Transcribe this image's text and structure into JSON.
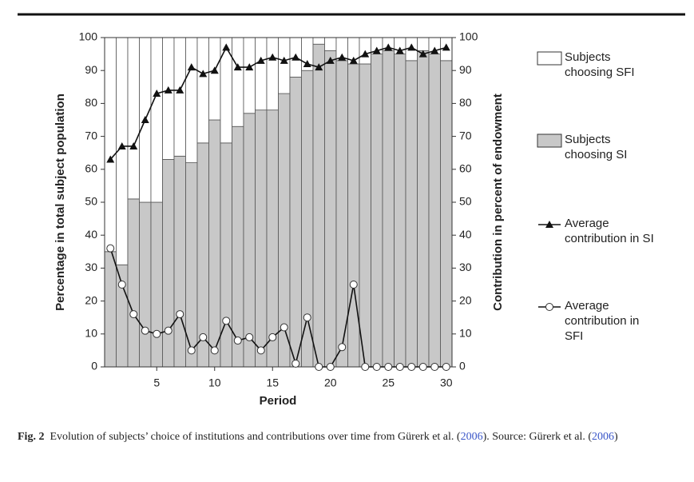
{
  "chart_data": {
    "type": "bar",
    "x_label": "Period",
    "y_label": "Percentage in total subject population",
    "y2_label": "Contribution in percent of endowment",
    "x": [
      1,
      2,
      3,
      4,
      5,
      6,
      7,
      8,
      9,
      10,
      11,
      12,
      13,
      14,
      15,
      16,
      17,
      18,
      19,
      20,
      21,
      22,
      23,
      24,
      25,
      26,
      27,
      28,
      29,
      30
    ],
    "xlim": [
      0.5,
      30.5
    ],
    "xticks": [
      5,
      10,
      15,
      20,
      25,
      30
    ],
    "ylim": [
      0,
      100
    ],
    "yticks": [
      0,
      10,
      20,
      30,
      40,
      50,
      60,
      70,
      80,
      90,
      100
    ],
    "y2lim": [
      0,
      100
    ],
    "y2ticks": [
      0,
      10,
      20,
      30,
      40,
      50,
      60,
      70,
      80,
      90,
      100
    ],
    "series": [
      {
        "name": "Subjects choosing SFI",
        "type": "bar",
        "color": "#ffffff",
        "values": [
          65,
          69,
          49,
          50,
          50,
          37,
          36,
          38,
          32,
          25,
          32,
          27,
          23,
          22,
          22,
          17,
          12,
          10,
          2,
          4,
          7,
          8,
          8,
          5,
          4,
          5,
          7,
          4,
          5,
          7
        ]
      },
      {
        "name": "Subjects choosing SI",
        "type": "bar",
        "color": "#c8c8c8",
        "values": [
          35,
          31,
          51,
          50,
          50,
          63,
          64,
          62,
          68,
          75,
          68,
          73,
          77,
          78,
          78,
          83,
          88,
          90,
          98,
          96,
          93,
          92,
          92,
          95,
          96,
          95,
          93,
          96,
          95,
          93
        ]
      },
      {
        "name": "Average contribution in SI",
        "type": "line",
        "axis": "y2",
        "marker": "triangle",
        "color": "#111111",
        "values": [
          63,
          67,
          67,
          75,
          83,
          84,
          84,
          91,
          89,
          90,
          97,
          91,
          91,
          93,
          94,
          93,
          94,
          92,
          91,
          93,
          94,
          93,
          95,
          96,
          97,
          96,
          97,
          95,
          96,
          97
        ]
      },
      {
        "name": "Average contribution in SFI",
        "type": "line",
        "axis": "y2",
        "marker": "circle",
        "color": "#111111",
        "values": [
          36,
          25,
          16,
          11,
          10,
          11,
          16,
          5,
          9,
          5,
          14,
          8,
          9,
          5,
          9,
          12,
          1,
          15,
          0,
          0,
          6,
          25,
          0,
          0,
          0,
          0,
          0,
          0,
          0,
          0
        ]
      }
    ],
    "caption": [
      {
        "text": "Fig. 2",
        "bold": true
      },
      {
        "text": "  Evolution of subjects’ choice of institutions and contributions over time from Gürerk et al. ("
      },
      {
        "text": "2006",
        "color": "#3a56c8"
      },
      {
        "text": "). Source: Gürerk et al. ("
      },
      {
        "text": "2006",
        "color": "#3a56c8"
      },
      {
        "text": ")"
      }
    ]
  }
}
